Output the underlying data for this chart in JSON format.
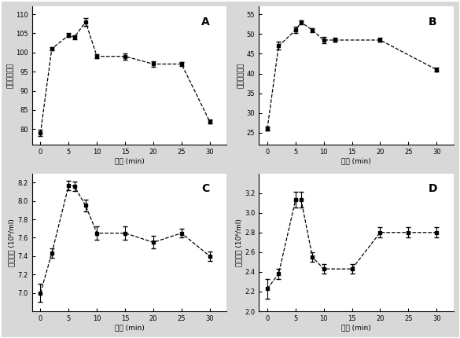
{
  "panel_A": {
    "label": "A",
    "x": [
      0,
      2,
      5,
      6,
      8,
      10,
      15,
      20,
      25,
      30
    ],
    "y": [
      79,
      101,
      104.5,
      104,
      108,
      99,
      99,
      97,
      97,
      82
    ],
    "yerr": [
      0.8,
      0.5,
      0.5,
      0.5,
      1.0,
      0.5,
      0.8,
      0.8,
      0.5,
      0.5
    ],
    "ylabel": "绿色荆光强度",
    "xlabel": "时间 (min)",
    "ylim": [
      76,
      112
    ],
    "yticks": [
      80,
      85,
      90,
      95,
      100,
      105,
      110
    ],
    "xticks": [
      0,
      5,
      10,
      15,
      20,
      25,
      30
    ]
  },
  "panel_B": {
    "label": "B",
    "x": [
      0,
      2,
      5,
      6,
      8,
      10,
      12,
      20,
      30
    ],
    "y": [
      26,
      47,
      51,
      53,
      51,
      48.5,
      48.5,
      48.5,
      41
    ],
    "yerr": [
      0.5,
      1.0,
      0.8,
      0.5,
      0.5,
      0.8,
      0.5,
      0.5,
      0.5
    ],
    "ylabel": "橙色荆光强度",
    "xlabel": "时间 (min)",
    "ylim": [
      22,
      57
    ],
    "yticks": [
      25,
      30,
      35,
      40,
      45,
      50,
      55
    ],
    "xticks": [
      0,
      5,
      10,
      15,
      20,
      25,
      30
    ]
  },
  "panel_C": {
    "label": "C",
    "x": [
      0,
      2,
      5,
      6,
      8,
      10,
      15,
      20,
      25,
      30
    ],
    "y": [
      7.0,
      7.43,
      8.17,
      8.16,
      7.95,
      7.65,
      7.65,
      7.55,
      7.65,
      7.4
    ],
    "yerr": [
      0.1,
      0.05,
      0.05,
      0.05,
      0.06,
      0.07,
      0.07,
      0.07,
      0.05,
      0.05
    ],
    "ylabel": "总细胞数 (10⁶/ml)",
    "xlabel": "时间 (min)",
    "ylim": [
      6.8,
      8.3
    ],
    "yticks": [
      7.0,
      7.2,
      7.4,
      7.6,
      7.8,
      8.0,
      8.2
    ],
    "xticks": [
      0,
      5,
      10,
      15,
      20,
      25,
      30
    ]
  },
  "panel_D": {
    "label": "D",
    "x": [
      0,
      2,
      5,
      6,
      8,
      10,
      15,
      20,
      25,
      30
    ],
    "y": [
      2.23,
      2.38,
      3.13,
      3.13,
      2.55,
      2.43,
      2.43,
      2.8,
      2.8,
      2.8
    ],
    "yerr": [
      0.1,
      0.05,
      0.08,
      0.08,
      0.05,
      0.05,
      0.05,
      0.05,
      0.05,
      0.05
    ],
    "ylabel": "异养菌数 (10⁶/ml)",
    "xlabel": "时间 (min)",
    "ylim": [
      2.0,
      3.4
    ],
    "yticks": [
      2.0,
      2.2,
      2.4,
      2.6,
      2.8,
      3.0,
      3.2
    ],
    "xticks": [
      0,
      5,
      10,
      15,
      20,
      25,
      30
    ]
  },
  "line_color": "#000000",
  "marker": "s",
  "marker_size": 3.5,
  "line_style": "--",
  "bg_color": "#d8d8d8",
  "panel_bg": "#ffffff",
  "outer_border_color": "#888888"
}
